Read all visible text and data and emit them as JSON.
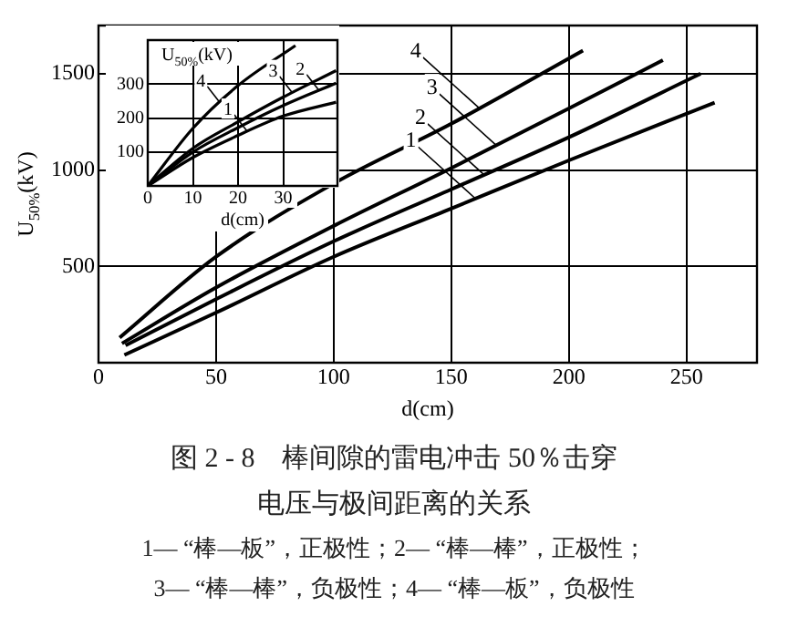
{
  "chart_data": [
    {
      "type": "line",
      "xlabel": "d(cm)",
      "ylabel": "U$_{50%}$(kV)",
      "xlim": [
        0,
        280
      ],
      "ylim": [
        0,
        1750
      ],
      "xticks": [
        0,
        50,
        100,
        150,
        200,
        250
      ],
      "yticks": [
        500,
        1000,
        1500
      ],
      "grid": true,
      "series": [
        {
          "color": "#000000",
          "x": [
            11,
            50,
            100,
            150,
            200,
            262
          ],
          "values": [
            40,
            260,
            550,
            800,
            1050,
            1350
          ]
        },
        {
          "color": "#000000",
          "x": [
            11.5,
            50,
            100,
            150,
            200,
            256
          ],
          "values": [
            90,
            330,
            630,
            900,
            1170,
            1500
          ]
        },
        {
          "color": "#000000",
          "x": [
            10,
            50,
            100,
            150,
            200,
            240
          ],
          "values": [
            100,
            390,
            710,
            1010,
            1320,
            1570
          ]
        },
        {
          "color": "#000000",
          "x": [
            9,
            50,
            100,
            150,
            206
          ],
          "values": [
            130,
            550,
            930,
            1240,
            1620
          ]
        }
      ],
      "annotations": [
        {
          "text": "1",
          "x": 160,
          "y": 855
        },
        {
          "text": "2",
          "x": 164,
          "y": 975
        },
        {
          "text": "3",
          "x": 169,
          "y": 1130
        },
        {
          "text": "4",
          "x": 162,
          "y": 1320
        },
        "图 2 - 8　棒间隙的雷电冲击 50％击穿",
        "电压与极间距离的关系",
        "1— “棒—板”，正极性；2— “棒—棒”，正极性；",
        "3— “棒—棒”，负极性；4— “棒—板”，负极性"
      ]
    },
    {
      "type": "line",
      "xlabel": "d(cm)",
      "ylabel": "U$_{50%}$(kV)",
      "xlim": [
        0,
        42
      ],
      "ylim": [
        0,
        430
      ],
      "xticks": [
        0,
        10,
        20,
        30
      ],
      "yticks": [
        100,
        200,
        300
      ],
      "grid": true,
      "series": [
        {
          "color": "#000000",
          "x": [
            0,
            10,
            20,
            30,
            41.7
          ],
          "values": [
            0,
            84,
            149,
            206,
            247
          ]
        },
        {
          "color": "#000000",
          "x": [
            0,
            10,
            20,
            30,
            41.7
          ],
          "values": [
            0,
            100,
            172,
            237,
            303
          ]
        },
        {
          "color": "#000000",
          "x": [
            0,
            10,
            20,
            30,
            41.7
          ],
          "values": [
            0,
            111,
            189,
            262,
            340
          ]
        },
        {
          "color": "#000000",
          "x": [
            0,
            10,
            20,
            32.7
          ],
          "values": [
            0,
            170,
            296,
            414
          ]
        }
      ],
      "annotations": [
        {
          "text": "1",
          "x": 22,
          "y": 161
        },
        {
          "text": "2",
          "x": 38,
          "y": 280
        },
        {
          "text": "3",
          "x": 32,
          "y": 275
        },
        {
          "text": "4",
          "x": 16,
          "y": 245
        }
      ]
    }
  ]
}
